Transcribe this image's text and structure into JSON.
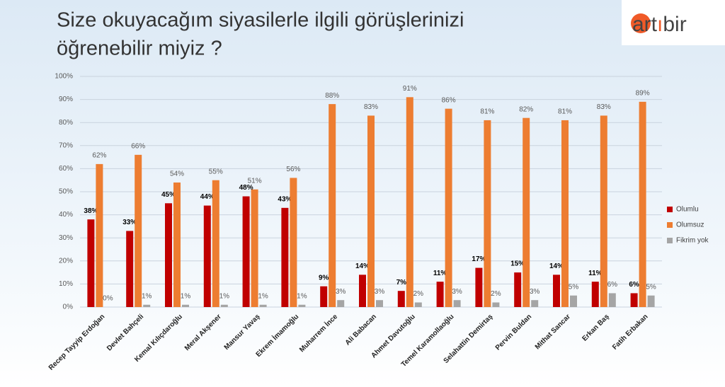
{
  "chart_data": {
    "type": "bar",
    "title": [
      "Size okuyacağım siyasilerle ilgili görüşlerinizi",
      "öğrenebilir miyiz ?"
    ],
    "logo": [
      "art",
      "ı",
      "bir"
    ],
    "categories": [
      "Recep Tayyip Erdoğan",
      "Devlet Bahçeli",
      "Kemal Kılıçdaroğlu",
      "Meral Akşener",
      "Mansur Yavaş",
      "Ekrem İmamoğlu",
      "Muharrem İnce",
      "Ali Babacan",
      "Ahmet Davutoğlu",
      "Temel Karamollaoğlu",
      "Selahattin Demirtaş",
      "Pervin Buldan",
      "Mithat Sancar",
      "Erkan Baş",
      "Fatih Erbakan"
    ],
    "series": [
      {
        "name": "Olumlu",
        "color": "#c00000",
        "values": [
          38,
          33,
          45,
          44,
          48,
          43,
          9,
          14,
          7,
          11,
          17,
          15,
          14,
          11,
          6
        ],
        "value_labels": [
          "38%",
          "33%",
          "45%",
          "44%",
          "48%",
          "43%",
          "9%",
          "14%",
          "7%",
          "11%",
          "17%",
          "15%",
          "14%",
          "11%",
          "6%"
        ]
      },
      {
        "name": "Olumsuz",
        "color": "#ed7d31",
        "values": [
          62,
          66,
          54,
          55,
          51,
          56,
          88,
          83,
          91,
          86,
          81,
          82,
          81,
          83,
          89
        ],
        "value_labels": [
          "62%",
          "66%",
          "54%",
          "55%",
          "51%",
          "56%",
          "88%",
          "83%",
          "91%",
          "86%",
          "81%",
          "82%",
          "81%",
          "83%",
          "89%"
        ]
      },
      {
        "name": "Fikrim yok",
        "color": "#a5a5a5",
        "values": [
          0,
          1,
          1,
          1,
          1,
          1,
          3,
          3,
          2,
          3,
          2,
          3,
          5,
          6,
          5
        ],
        "value_labels": [
          "0%",
          "1%",
          "1%",
          "1%",
          "1%",
          "1%",
          "3%",
          "3%",
          "2%",
          "3%",
          "2%",
          "3%",
          "5%",
          "6%",
          "5%"
        ]
      }
    ],
    "ylim": [
      0,
      100
    ],
    "yticks": [
      {
        "value": 0,
        "label": "0%"
      },
      {
        "value": 10,
        "label": "10%"
      },
      {
        "value": 20,
        "label": "20%"
      },
      {
        "value": 30,
        "label": "30%"
      },
      {
        "value": 40,
        "label": "40%"
      },
      {
        "value": 50,
        "label": "50%"
      },
      {
        "value": 60,
        "label": "60%"
      },
      {
        "value": 70,
        "label": "70%"
      },
      {
        "value": 80,
        "label": "80%"
      },
      {
        "value": 90,
        "label": "90%"
      },
      {
        "value": 100,
        "label": "100%"
      }
    ],
    "grid": true,
    "legend": "right"
  }
}
